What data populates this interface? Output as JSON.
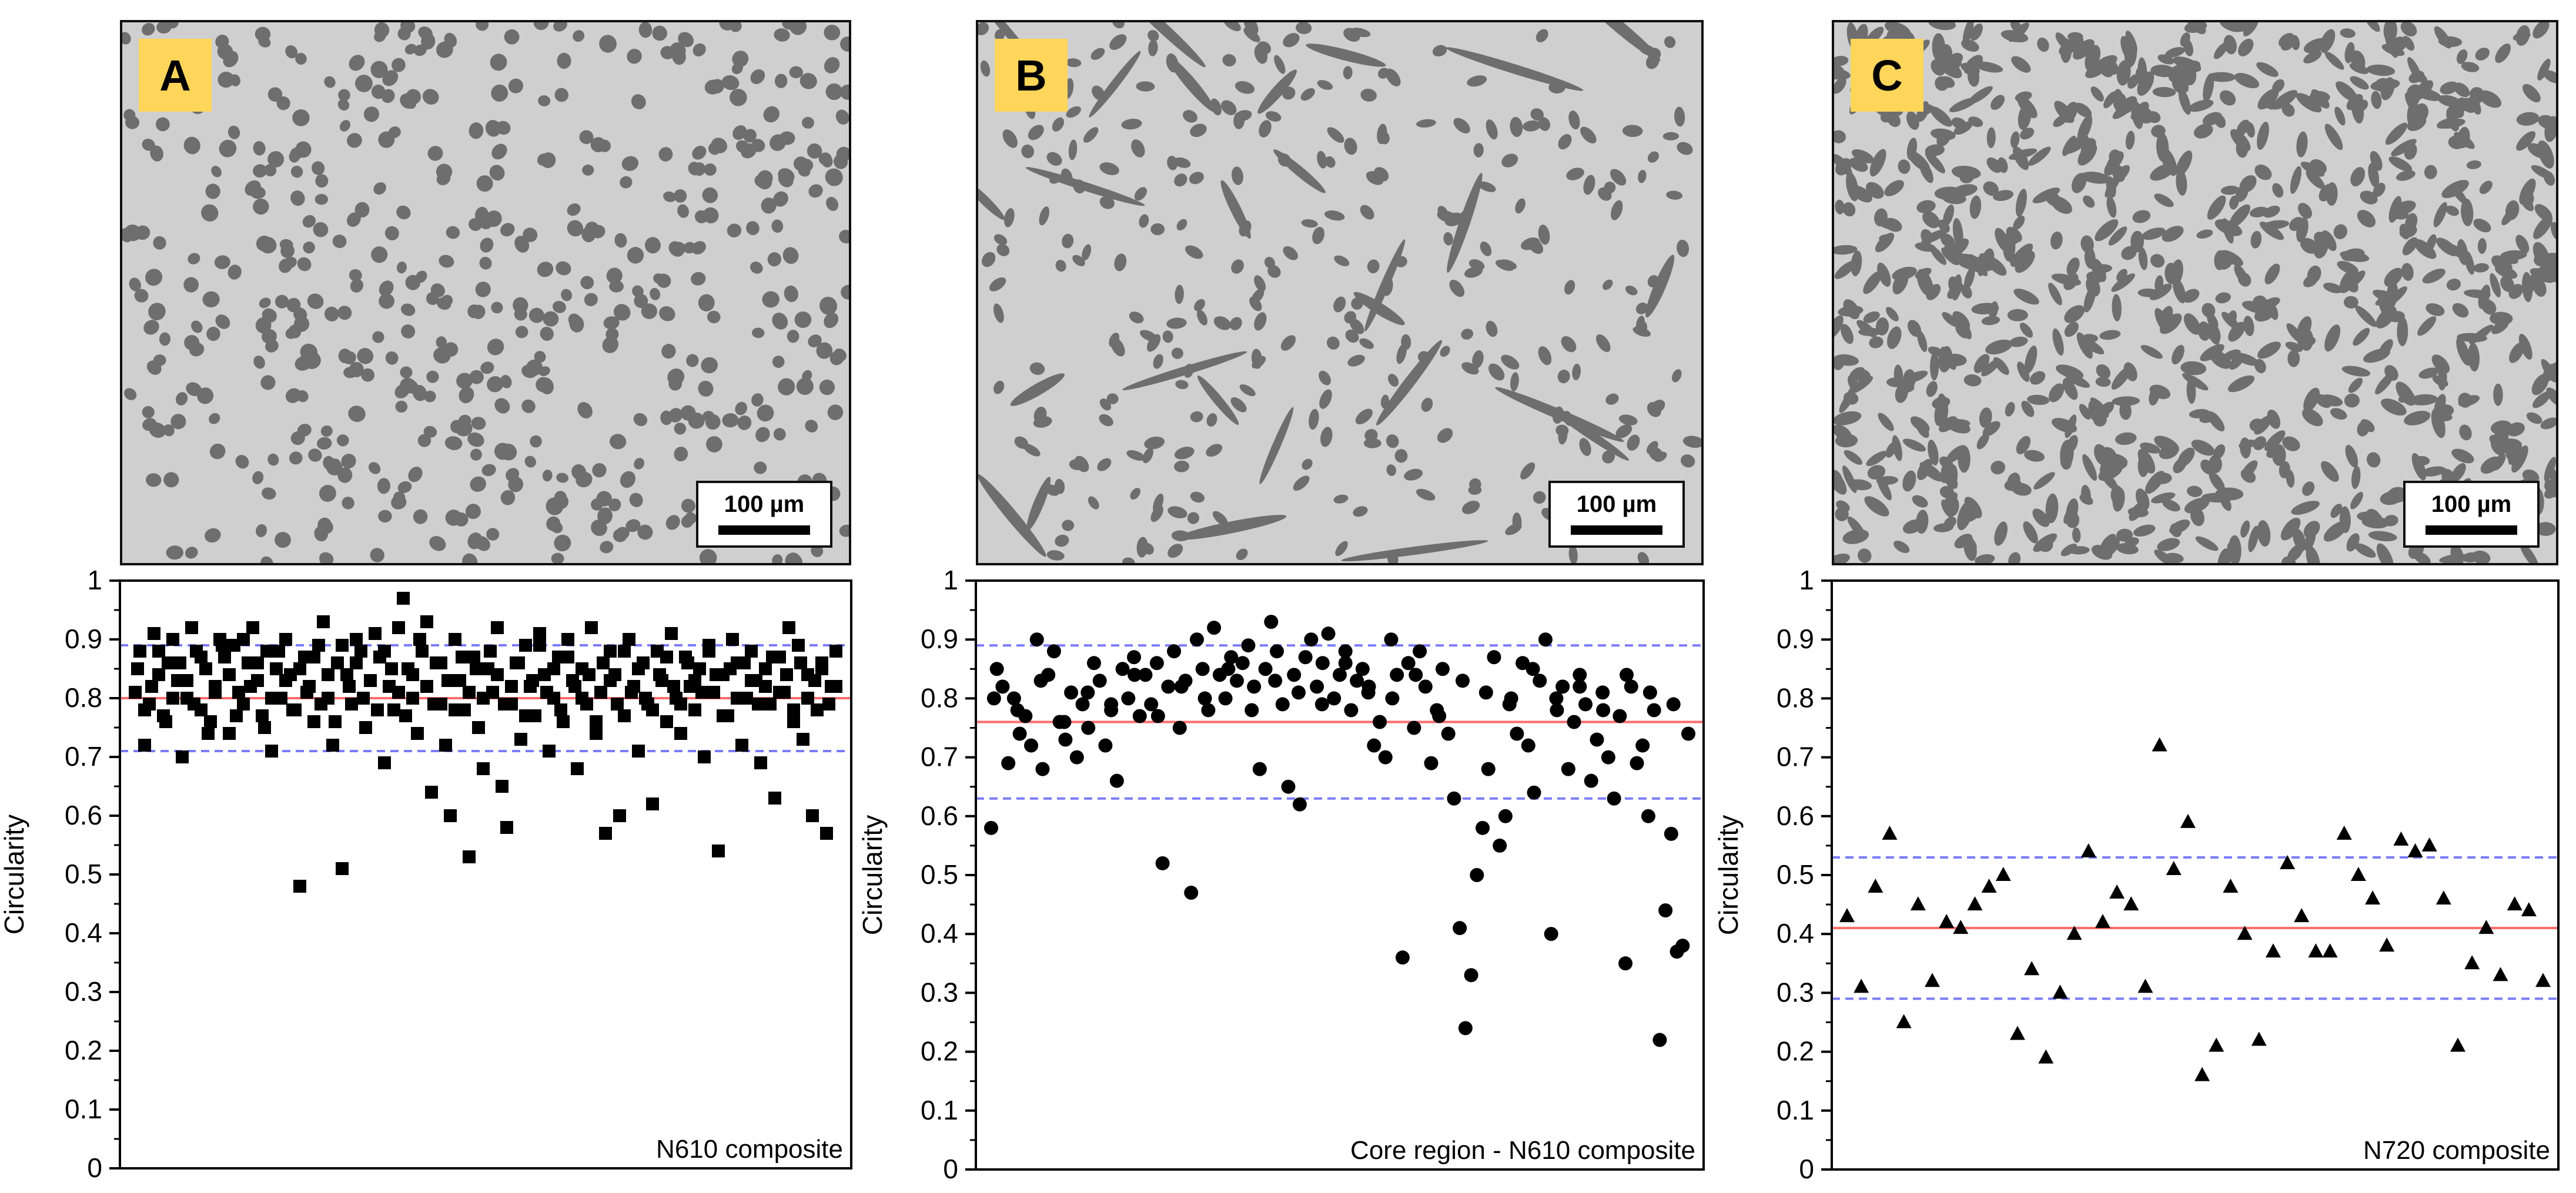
{
  "panels": [
    {
      "letter": "A",
      "scale_label": "100 µm",
      "image_style": "round fibres (cross-section)"
    },
    {
      "letter": "B",
      "scale_label": "100 µm",
      "image_style": "round and elongated fibres"
    },
    {
      "letter": "C",
      "scale_label": "100 µm",
      "image_style": "dense elongated fibres"
    }
  ],
  "colors": {
    "mean_line": "#ff6b6b",
    "std_line": "#7b7bff",
    "marker": "#000000",
    "highlight": "#ffd55a"
  },
  "chart_data": [
    {
      "type": "scatter",
      "marker": "square",
      "ylabel": "Circularity",
      "annotation": "N610 composite",
      "ylim": [
        0,
        1
      ],
      "yticks": [
        "0",
        "0.1",
        "0.2",
        "0.3",
        "0.4",
        "0.5",
        "0.6",
        "0.7",
        "0.8",
        "0.9",
        "1"
      ],
      "mean": 0.8,
      "upper": 0.89,
      "lower": 0.71,
      "y": [
        0.81,
        0.88,
        0.72,
        0.79,
        0.91,
        0.84,
        0.77,
        0.86,
        0.9,
        0.83,
        0.7,
        0.8,
        0.92,
        0.88,
        0.78,
        0.85,
        0.76,
        0.82,
        0.9,
        0.87,
        0.74,
        0.89,
        0.81,
        0.79,
        0.86,
        0.92,
        0.83,
        0.77,
        0.88,
        0.71,
        0.85,
        0.8,
        0.9,
        0.84,
        0.78,
        0.48,
        0.87,
        0.82,
        0.76,
        0.89,
        0.93,
        0.8,
        0.72,
        0.86,
        0.51,
        0.84,
        0.79,
        0.9,
        0.88,
        0.75,
        0.83,
        0.91,
        0.87,
        0.69,
        0.82,
        0.78,
        0.92,
        0.97,
        0.85,
        0.8,
        0.74,
        0.88,
        0.93,
        0.64,
        0.86,
        0.79,
        0.72,
        0.6,
        0.9,
        0.83,
        0.78,
        0.53,
        0.87,
        0.75,
        0.68,
        0.85,
        0.81,
        0.92,
        0.65,
        0.58,
        0.79,
        0.86,
        0.73,
        0.89,
        0.82,
        0.77,
        0.91,
        0.84,
        0.71,
        0.8,
        0.87,
        0.76,
        0.9,
        0.83,
        0.68,
        0.85,
        0.79,
        0.92,
        0.74,
        0.81,
        0.57,
        0.88,
        0.84,
        0.6,
        0.77,
        0.9,
        0.82,
        0.71,
        0.86,
        0.79,
        0.62,
        0.88,
        0.83,
        0.76,
        0.91,
        0.8,
        0.74,
        0.87,
        0.82,
        0.78,
        0.85,
        0.7,
        0.89,
        0.81,
        0.54,
        0.84,
        0.77,
        0.9,
        0.86,
        0.72,
        0.8,
        0.88,
        0.83,
        0.69,
        0.85,
        0.79,
        0.63,
        0.87,
        0.81,
        0.92,
        0.76,
        0.89,
        0.73,
        0.84,
        0.6,
        0.78,
        0.86,
        0.57,
        0.82,
        0.88
      ],
      "y2": [
        0.85,
        0.78,
        0.82,
        0.88,
        0.76,
        0.8,
        0.86,
        0.83,
        0.79,
        0.87,
        0.74,
        0.81,
        0.89,
        0.84,
        0.77,
        0.9,
        0.82,
        0.86,
        0.75,
        0.8,
        0.88,
        0.83,
        0.78,
        0.85,
        0.81,
        0.87,
        0.79,
        0.84,
        0.76,
        0.89,
        0.82,
        0.86,
        0.8,
        0.83,
        0.78,
        0.88,
        0.85,
        0.81,
        0.77,
        0.84,
        0.9,
        0.82,
        0.79,
        0.86,
        0.83,
        0.78,
        0.87,
        0.81,
        0.85,
        0.8,
        0.88,
        0.84,
        0.79,
        0.82,
        0.86,
        0.77,
        0.83,
        0.89,
        0.81,
        0.85,
        0.78,
        0.87,
        0.82,
        0.8,
        0.84,
        0.76,
        0.86,
        0.83,
        0.79,
        0.88,
        0.81,
        0.85,
        0.8,
        0.78,
        0.84,
        0.87,
        0.82,
        0.79,
        0.86,
        0.83,
        0.81,
        0.88,
        0.84,
        0.77,
        0.85,
        0.8,
        0.86,
        0.83,
        0.79,
        0.82,
        0.87,
        0.81,
        0.84,
        0.78,
        0.86,
        0.8,
        0.83,
        0.85,
        0.79,
        0.82
      ]
    },
    {
      "type": "scatter",
      "marker": "circle",
      "ylabel": "Circularity",
      "annotation": "Core region - N610 composite",
      "ylim": [
        0,
        1
      ],
      "yticks": [
        "0",
        "0.1",
        "0.2",
        "0.3",
        "0.4",
        "0.5",
        "0.6",
        "0.7",
        "0.8",
        "0.9",
        "1"
      ],
      "mean": 0.76,
      "upper": 0.89,
      "lower": 0.63,
      "y": [
        0.58,
        0.85,
        0.82,
        0.69,
        0.8,
        0.74,
        0.77,
        0.72,
        0.9,
        0.68,
        0.84,
        0.88,
        0.76,
        0.73,
        0.81,
        0.7,
        0.79,
        0.75,
        0.86,
        0.83,
        0.72,
        0.78,
        0.66,
        0.85,
        0.8,
        0.87,
        0.77,
        0.84,
        0.79,
        0.86,
        0.52,
        0.82,
        0.88,
        0.75,
        0.83,
        0.47,
        0.9,
        0.85,
        0.78,
        0.92,
        0.84,
        0.8,
        0.87,
        0.83,
        0.86,
        0.89,
        0.82,
        0.68,
        0.85,
        0.93,
        0.88,
        0.79,
        0.65,
        0.84,
        0.62,
        0.87,
        0.9,
        0.82,
        0.86,
        0.91,
        0.8,
        0.84,
        0.88,
        0.78,
        0.83,
        0.85,
        0.81,
        0.72,
        0.76,
        0.7,
        0.9,
        0.84,
        0.36,
        0.86,
        0.75,
        0.88,
        0.82,
        0.69,
        0.78,
        0.85,
        0.74,
        0.63,
        0.41,
        0.24,
        0.33,
        0.5,
        0.58,
        0.68,
        0.87,
        0.55,
        0.6,
        0.8,
        0.74,
        0.86,
        0.72,
        0.64,
        0.83,
        0.9,
        0.4,
        0.78,
        0.82,
        0.68,
        0.76,
        0.84,
        0.79,
        0.66,
        0.73,
        0.81,
        0.7,
        0.63,
        0.77,
        0.35,
        0.82,
        0.69,
        0.72,
        0.6,
        0.78,
        0.22,
        0.44,
        0.57,
        0.37,
        0.38,
        0.74
      ],
      "y2": [
        0.8,
        0.78,
        0.83,
        0.76,
        0.81,
        0.79,
        0.84,
        0.77,
        0.82,
        0.8,
        0.85,
        0.78,
        0.83,
        0.81,
        0.79,
        0.86,
        0.82,
        0.8,
        0.84,
        0.77,
        0.83,
        0.81,
        0.79,
        0.85,
        0.8,
        0.82,
        0.78,
        0.84,
        0.81,
        0.79
      ]
    },
    {
      "type": "scatter",
      "marker": "triangle",
      "ylabel": "Circularity",
      "annotation": "N720 composite",
      "ylim": [
        0,
        1
      ],
      "yticks": [
        "0",
        "0.1",
        "0.2",
        "0.3",
        "0.4",
        "0.5",
        "0.6",
        "0.7",
        "0.8",
        "0.9",
        "1"
      ],
      "mean": 0.41,
      "upper": 0.53,
      "lower": 0.29,
      "y": [
        0.43,
        0.31,
        0.48,
        0.57,
        0.25,
        0.45,
        0.32,
        0.42,
        0.41,
        0.45,
        0.48,
        0.5,
        0.23,
        0.34,
        0.19,
        0.3,
        0.4,
        0.54,
        0.42,
        0.47,
        0.45,
        0.31,
        0.72,
        0.51,
        0.59,
        0.16,
        0.21,
        0.48,
        0.4,
        0.22,
        0.37,
        0.52,
        0.43,
        0.37,
        0.37,
        0.57,
        0.5,
        0.46,
        0.38,
        0.56,
        0.54,
        0.55,
        0.46,
        0.21,
        0.35,
        0.41,
        0.33,
        0.45,
        0.44,
        0.32
      ]
    }
  ]
}
